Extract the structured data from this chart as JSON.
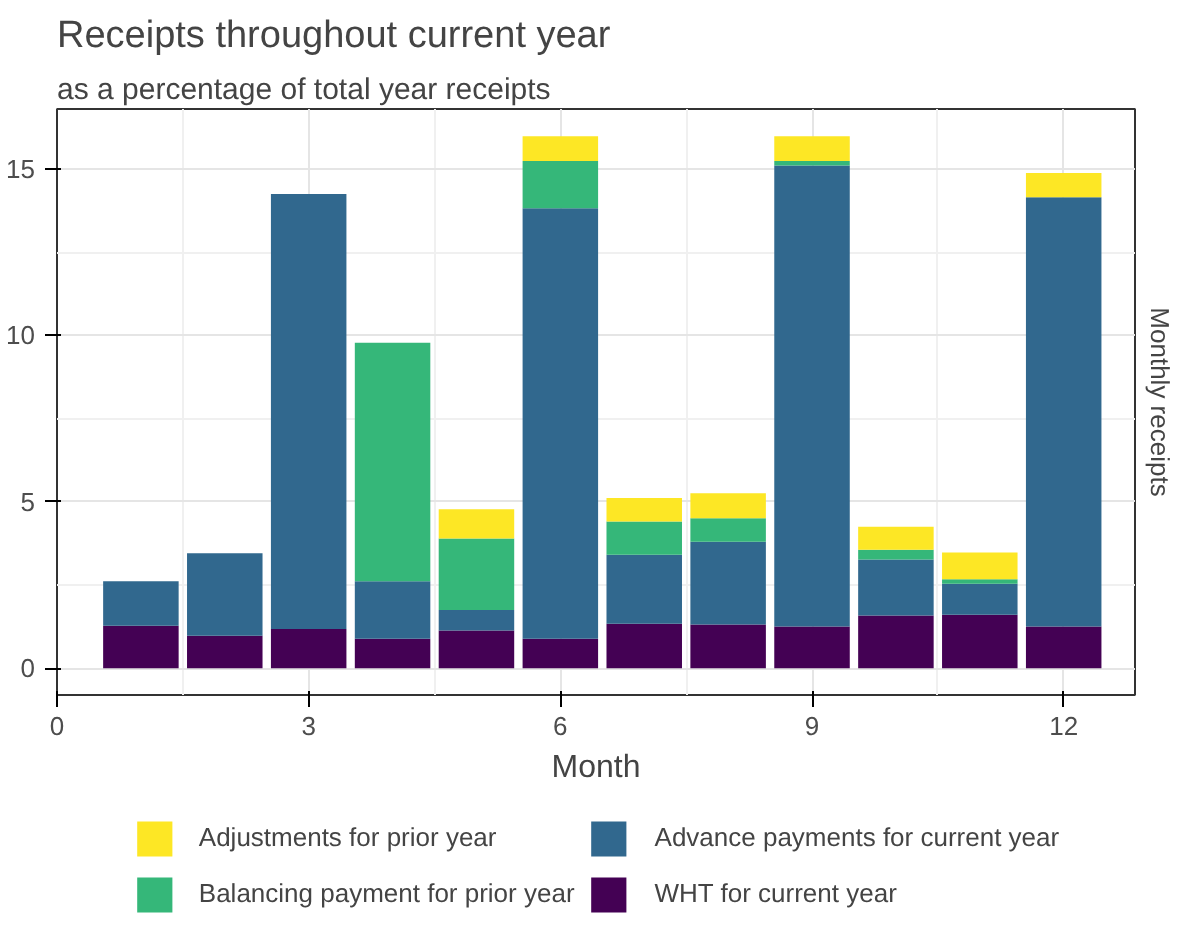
{
  "chart_data": {
    "type": "bar",
    "title": "Receipts throughout current year",
    "subtitle": "as a percentage of total year receipts",
    "xlabel": "Month",
    "ylabel": "Monthly receipts",
    "x": [
      1,
      2,
      3,
      4,
      5,
      6,
      7,
      8,
      9,
      10,
      11,
      12
    ],
    "stacked": true,
    "series": [
      {
        "name": "WHT for current year",
        "color": "#440154",
        "values": [
          1.28,
          0.98,
          1.18,
          0.89,
          1.14,
          0.89,
          1.34,
          1.32,
          1.26,
          1.59,
          1.61,
          1.26
        ]
      },
      {
        "name": "Advance payments for current year",
        "color": "#31688e",
        "values": [
          1.34,
          2.48,
          13.07,
          1.73,
          0.61,
          12.93,
          2.07,
          2.48,
          13.84,
          1.68,
          0.93,
          12.89
        ]
      },
      {
        "name": "Balancing payment for prior year",
        "color": "#35b779",
        "values": [
          0,
          0,
          0,
          7.16,
          2.15,
          1.42,
          1.0,
          0.71,
          0.14,
          0.29,
          0.14,
          0
        ]
      },
      {
        "name": "Adjustments for prior year",
        "color": "#fde725",
        "values": [
          0,
          0,
          0,
          0,
          0.88,
          0.74,
          0.71,
          0.75,
          0.74,
          0.69,
          0.8,
          0.73
        ]
      }
    ],
    "xlim": [
      0,
      12.85
    ],
    "ylim": [
      -0.8,
      16.8
    ],
    "xticks": [
      0,
      3,
      6,
      9,
      12
    ],
    "yticks": [
      0,
      5,
      10,
      15
    ],
    "grid": true,
    "legend": "bottom"
  }
}
